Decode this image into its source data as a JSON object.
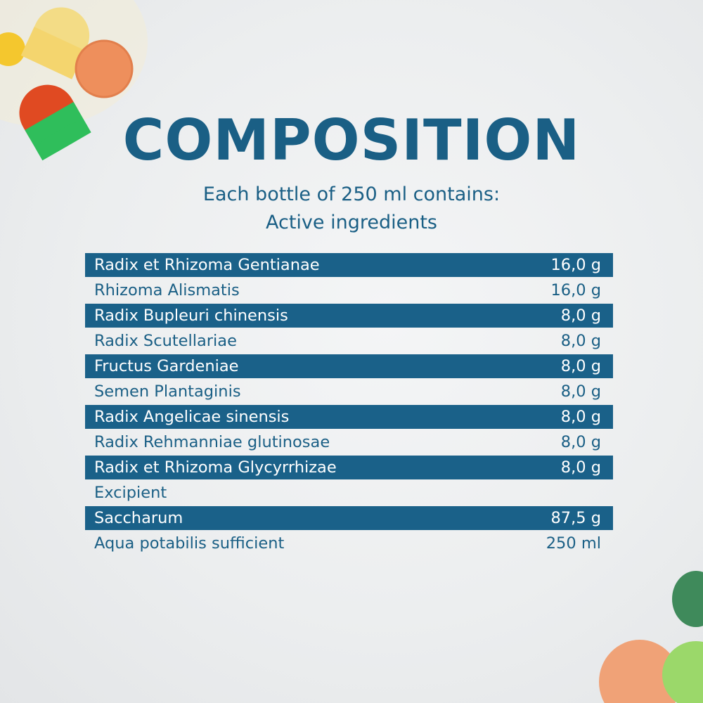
{
  "title": "COMPOSITION",
  "subtitle_line1": "Each bottle of 250 ml contains:",
  "subtitle_line2": "Active ingredients",
  "rows": [
    {
      "name": "Radix et Rhizoma Gentianae",
      "amount": "16,0 g"
    },
    {
      "name": "Rhizoma Alismatis",
      "amount": "16,0 g"
    },
    {
      "name": "Radix Bupleuri chinensis",
      "amount": "8,0 g"
    },
    {
      "name": "Radix Scutellariae",
      "amount": "8,0 g"
    },
    {
      "name": "Fructus Gardeniae",
      "amount": "8,0 g"
    },
    {
      "name": "Semen Plantaginis",
      "amount": "8,0 g"
    },
    {
      "name": "Radix Angelicae sinensis",
      "amount": "8,0 g"
    },
    {
      "name": "Radix Rehmanniae glutinosae",
      "amount": "8,0 g"
    },
    {
      "name": "Radix et Rhizoma Glycyrrhizae",
      "amount": "8,0 g"
    },
    {
      "name": "Excipient",
      "amount": ""
    },
    {
      "name": "Saccharum",
      "amount": "87,5 g"
    },
    {
      "name": "Aqua potabilis sufficient",
      "amount": "250 ml"
    }
  ],
  "colors": {
    "brand_blue": "#1a5f85",
    "band_blue": "#1a6189"
  }
}
